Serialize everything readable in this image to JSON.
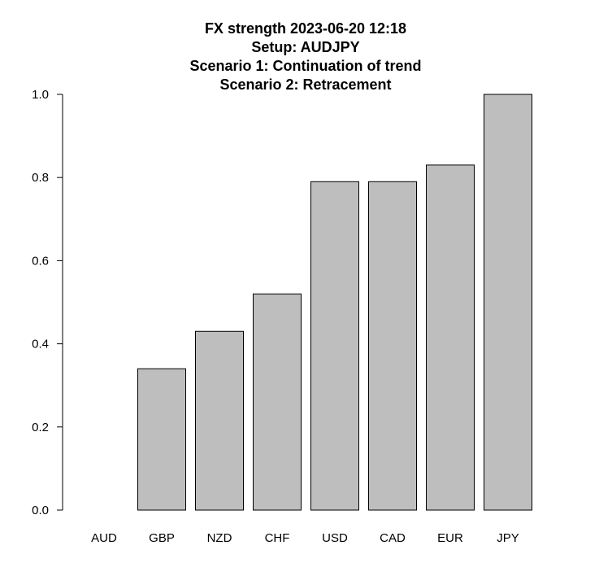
{
  "chart_data": {
    "type": "bar",
    "title_lines": [
      "FX strength 2023-06-20 12:18",
      "Setup:  AUDJPY",
      "Scenario 1: Continuation of trend",
      "Scenario 2: Retracement"
    ],
    "categories": [
      "AUD",
      "GBP",
      "NZD",
      "CHF",
      "USD",
      "CAD",
      "EUR",
      "JPY"
    ],
    "values": [
      0.0,
      0.34,
      0.43,
      0.52,
      0.79,
      0.79,
      0.83,
      1.0
    ],
    "ylim": [
      0,
      1
    ],
    "y_ticks": [
      0.0,
      0.2,
      0.4,
      0.6,
      0.8,
      1.0
    ],
    "y_tick_labels": [
      "0.0",
      "0.2",
      "0.4",
      "0.6",
      "0.8",
      "1.0"
    ],
    "xlabel": "",
    "ylabel": "",
    "grid": false,
    "bar_color": "#bebebe",
    "edge_color": "#000000"
  }
}
